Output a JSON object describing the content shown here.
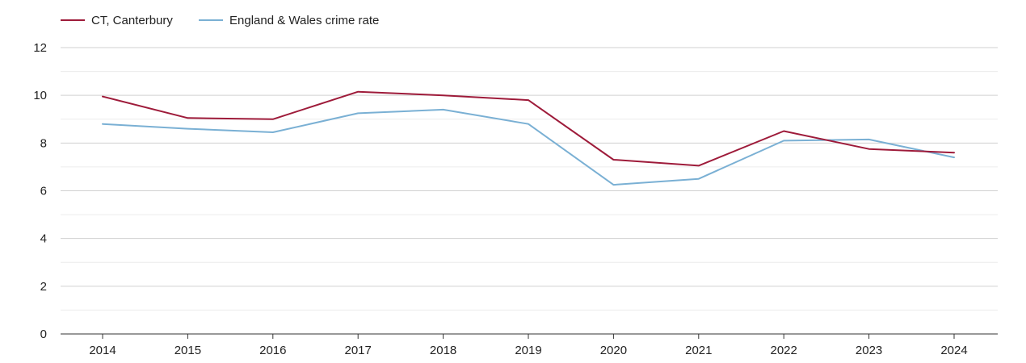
{
  "chart_data": {
    "type": "line",
    "title": "",
    "xlabel": "",
    "ylabel": "",
    "categories": [
      "2014",
      "2015",
      "2016",
      "2017",
      "2018",
      "2019",
      "2020",
      "2021",
      "2022",
      "2023",
      "2024"
    ],
    "ylim": [
      0,
      12
    ],
    "yticks": [
      0,
      2,
      4,
      6,
      8,
      10,
      12
    ],
    "grid": true,
    "legend_position": "top-left",
    "series": [
      {
        "name": "CT, Canterbury",
        "color": "#9e1b3a",
        "values": [
          9.95,
          9.05,
          9.0,
          10.15,
          10.0,
          9.8,
          7.3,
          7.05,
          8.5,
          7.75,
          7.6
        ]
      },
      {
        "name": "England & Wales crime rate",
        "color": "#7ab0d4",
        "values": [
          8.8,
          8.6,
          8.45,
          9.25,
          9.4,
          8.8,
          6.25,
          6.5,
          8.1,
          8.15,
          7.4
        ]
      }
    ]
  }
}
